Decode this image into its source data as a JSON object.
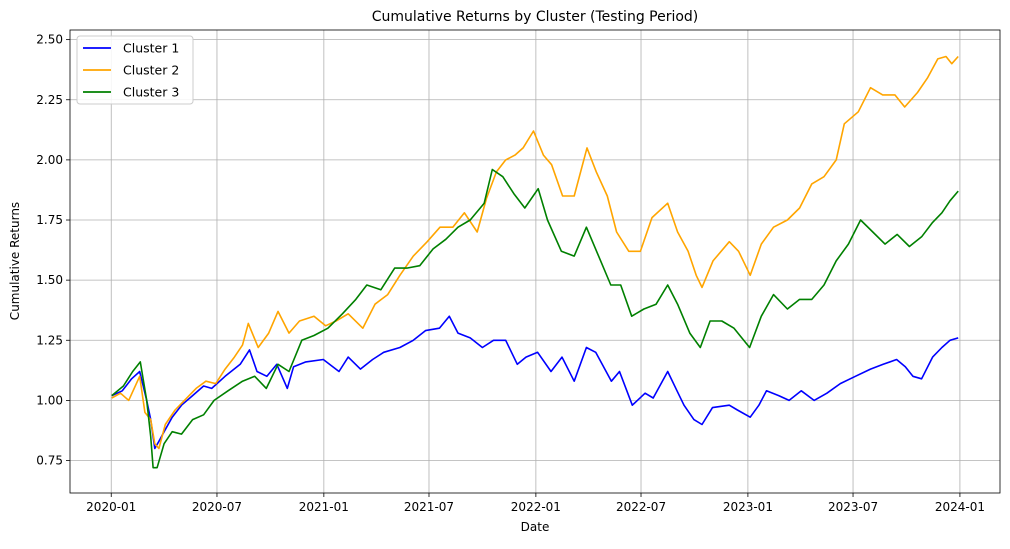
{
  "chart_data": {
    "type": "line",
    "title": "Cumulative Returns by Cluster (Testing Period)",
    "xlabel": "Date",
    "ylabel": "Cumulative Returns",
    "x_ticks": [
      "2020-01",
      "2020-07",
      "2021-01",
      "2021-07",
      "2022-01",
      "2022-07",
      "2023-01",
      "2023-07",
      "2024-01"
    ],
    "xlim": [
      "2019-10-22",
      "2024-03-10"
    ],
    "y_ticks": [
      "0.75",
      "1.00",
      "1.25",
      "1.50",
      "1.75",
      "2.00",
      "2.25",
      "2.50"
    ],
    "ylim": [
      0.615,
      2.54
    ],
    "grid": true,
    "legend_position": "top-left",
    "series": [
      {
        "name": "Cluster 1",
        "color": "#0000ff",
        "points": [
          [
            "2020-01-02",
            1.02
          ],
          [
            "2020-01-20",
            1.04
          ],
          [
            "2020-02-05",
            1.09
          ],
          [
            "2020-02-19",
            1.12
          ],
          [
            "2020-03-02",
            1.0
          ],
          [
            "2020-03-09",
            0.92
          ],
          [
            "2020-03-16",
            0.8
          ],
          [
            "2020-03-23",
            0.83
          ],
          [
            "2020-04-01",
            0.87
          ],
          [
            "2020-04-15",
            0.93
          ],
          [
            "2020-05-01",
            0.98
          ],
          [
            "2020-05-20",
            1.02
          ],
          [
            "2020-06-08",
            1.06
          ],
          [
            "2020-06-22",
            1.05
          ],
          [
            "2020-07-15",
            1.1
          ],
          [
            "2020-08-10",
            1.15
          ],
          [
            "2020-08-26",
            1.21
          ],
          [
            "2020-09-08",
            1.12
          ],
          [
            "2020-09-25",
            1.1
          ],
          [
            "2020-10-12",
            1.15
          ],
          [
            "2020-10-30",
            1.05
          ],
          [
            "2020-11-10",
            1.14
          ],
          [
            "2020-12-01",
            1.16
          ],
          [
            "2020-12-31",
            1.17
          ],
          [
            "2021-01-27",
            1.12
          ],
          [
            "2021-02-12",
            1.18
          ],
          [
            "2021-03-05",
            1.13
          ],
          [
            "2021-03-26",
            1.17
          ],
          [
            "2021-04-14",
            1.2
          ],
          [
            "2021-05-12",
            1.22
          ],
          [
            "2021-06-04",
            1.25
          ],
          [
            "2021-06-25",
            1.29
          ],
          [
            "2021-07-19",
            1.3
          ],
          [
            "2021-08-05",
            1.35
          ],
          [
            "2021-08-20",
            1.28
          ],
          [
            "2021-09-10",
            1.26
          ],
          [
            "2021-10-01",
            1.22
          ],
          [
            "2021-10-20",
            1.25
          ],
          [
            "2021-11-10",
            1.25
          ],
          [
            "2021-11-30",
            1.15
          ],
          [
            "2021-12-15",
            1.18
          ],
          [
            "2022-01-04",
            1.2
          ],
          [
            "2022-01-27",
            1.12
          ],
          [
            "2022-02-15",
            1.18
          ],
          [
            "2022-03-08",
            1.08
          ],
          [
            "2022-03-29",
            1.22
          ],
          [
            "2022-04-14",
            1.2
          ],
          [
            "2022-05-11",
            1.08
          ],
          [
            "2022-05-25",
            1.12
          ],
          [
            "2022-06-16",
            0.98
          ],
          [
            "2022-07-08",
            1.03
          ],
          [
            "2022-07-22",
            1.01
          ],
          [
            "2022-08-16",
            1.12
          ],
          [
            "2022-09-01",
            1.04
          ],
          [
            "2022-09-13",
            0.98
          ],
          [
            "2022-09-30",
            0.92
          ],
          [
            "2022-10-14",
            0.9
          ],
          [
            "2022-11-01",
            0.97
          ],
          [
            "2022-11-30",
            0.98
          ],
          [
            "2022-12-14",
            0.96
          ],
          [
            "2023-01-05",
            0.93
          ],
          [
            "2023-01-20",
            0.98
          ],
          [
            "2023-02-02",
            1.04
          ],
          [
            "2023-02-23",
            1.02
          ],
          [
            "2023-03-13",
            1.0
          ],
          [
            "2023-04-03",
            1.04
          ],
          [
            "2023-04-25",
            1.0
          ],
          [
            "2023-05-17",
            1.03
          ],
          [
            "2023-06-09",
            1.07
          ],
          [
            "2023-07-05",
            1.1
          ],
          [
            "2023-07-31",
            1.13
          ],
          [
            "2023-08-22",
            1.15
          ],
          [
            "2023-09-14",
            1.17
          ],
          [
            "2023-09-29",
            1.14
          ],
          [
            "2023-10-12",
            1.1
          ],
          [
            "2023-10-27",
            1.09
          ],
          [
            "2023-11-15",
            1.18
          ],
          [
            "2023-12-01",
            1.22
          ],
          [
            "2023-12-15",
            1.25
          ],
          [
            "2023-12-29",
            1.26
          ]
        ]
      },
      {
        "name": "Cluster 2",
        "color": "#ffa500",
        "points": [
          [
            "2020-01-02",
            1.01
          ],
          [
            "2020-01-17",
            1.03
          ],
          [
            "2020-01-31",
            1.0
          ],
          [
            "2020-02-19",
            1.1
          ],
          [
            "2020-02-28",
            0.95
          ],
          [
            "2020-03-09",
            0.92
          ],
          [
            "2020-03-16",
            0.82
          ],
          [
            "2020-03-23",
            0.8
          ],
          [
            "2020-04-03",
            0.9
          ],
          [
            "2020-04-20",
            0.96
          ],
          [
            "2020-05-06",
            1.0
          ],
          [
            "2020-05-26",
            1.05
          ],
          [
            "2020-06-12",
            1.08
          ],
          [
            "2020-06-29",
            1.07
          ],
          [
            "2020-07-15",
            1.13
          ],
          [
            "2020-07-31",
            1.18
          ],
          [
            "2020-08-14",
            1.23
          ],
          [
            "2020-08-24",
            1.32
          ],
          [
            "2020-09-10",
            1.22
          ],
          [
            "2020-09-28",
            1.28
          ],
          [
            "2020-10-14",
            1.37
          ],
          [
            "2020-11-02",
            1.28
          ],
          [
            "2020-11-20",
            1.33
          ],
          [
            "2020-12-15",
            1.35
          ],
          [
            "2021-01-04",
            1.31
          ],
          [
            "2021-01-22",
            1.33
          ],
          [
            "2021-02-12",
            1.36
          ],
          [
            "2021-03-09",
            1.3
          ],
          [
            "2021-03-30",
            1.4
          ],
          [
            "2021-04-21",
            1.44
          ],
          [
            "2021-05-12",
            1.52
          ],
          [
            "2021-06-04",
            1.6
          ],
          [
            "2021-06-28",
            1.66
          ],
          [
            "2021-07-20",
            1.72
          ],
          [
            "2021-08-11",
            1.72
          ],
          [
            "2021-08-31",
            1.78
          ],
          [
            "2021-09-22",
            1.7
          ],
          [
            "2021-10-08",
            1.84
          ],
          [
            "2021-10-25",
            1.95
          ],
          [
            "2021-11-10",
            2.0
          ],
          [
            "2021-11-26",
            2.02
          ],
          [
            "2021-12-10",
            2.05
          ],
          [
            "2021-12-28",
            2.12
          ],
          [
            "2022-01-14",
            2.02
          ],
          [
            "2022-01-28",
            1.98
          ],
          [
            "2022-02-16",
            1.85
          ],
          [
            "2022-03-08",
            1.85
          ],
          [
            "2022-03-30",
            2.05
          ],
          [
            "2022-04-15",
            1.95
          ],
          [
            "2022-05-04",
            1.85
          ],
          [
            "2022-05-20",
            1.7
          ],
          [
            "2022-06-10",
            1.62
          ],
          [
            "2022-06-30",
            1.62
          ],
          [
            "2022-07-20",
            1.76
          ],
          [
            "2022-08-16",
            1.82
          ],
          [
            "2022-09-02",
            1.7
          ],
          [
            "2022-09-20",
            1.62
          ],
          [
            "2022-10-04",
            1.52
          ],
          [
            "2022-10-14",
            1.47
          ],
          [
            "2022-11-02",
            1.58
          ],
          [
            "2022-11-30",
            1.66
          ],
          [
            "2022-12-16",
            1.62
          ],
          [
            "2023-01-05",
            1.52
          ],
          [
            "2023-01-24",
            1.65
          ],
          [
            "2023-02-14",
            1.72
          ],
          [
            "2023-03-10",
            1.75
          ],
          [
            "2023-03-31",
            1.8
          ],
          [
            "2023-04-21",
            1.9
          ],
          [
            "2023-05-12",
            1.93
          ],
          [
            "2023-06-02",
            2.0
          ],
          [
            "2023-06-16",
            2.15
          ],
          [
            "2023-07-10",
            2.2
          ],
          [
            "2023-07-31",
            2.3
          ],
          [
            "2023-08-21",
            2.27
          ],
          [
            "2023-09-11",
            2.27
          ],
          [
            "2023-09-28",
            2.22
          ],
          [
            "2023-10-20",
            2.28
          ],
          [
            "2023-11-06",
            2.34
          ],
          [
            "2023-11-24",
            2.42
          ],
          [
            "2023-12-08",
            2.43
          ],
          [
            "2023-12-18",
            2.4
          ],
          [
            "2023-12-29",
            2.43
          ]
        ]
      },
      {
        "name": "Cluster 3",
        "color": "#008000",
        "points": [
          [
            "2020-01-02",
            1.02
          ],
          [
            "2020-01-22",
            1.06
          ],
          [
            "2020-02-07",
            1.12
          ],
          [
            "2020-02-20",
            1.16
          ],
          [
            "2020-03-02",
            1.0
          ],
          [
            "2020-03-09",
            0.85
          ],
          [
            "2020-03-13",
            0.72
          ],
          [
            "2020-03-20",
            0.72
          ],
          [
            "2020-04-01",
            0.82
          ],
          [
            "2020-04-15",
            0.87
          ],
          [
            "2020-05-01",
            0.86
          ],
          [
            "2020-05-20",
            0.92
          ],
          [
            "2020-06-08",
            0.94
          ],
          [
            "2020-06-26",
            1.0
          ],
          [
            "2020-07-20",
            1.04
          ],
          [
            "2020-08-14",
            1.08
          ],
          [
            "2020-09-04",
            1.1
          ],
          [
            "2020-09-24",
            1.05
          ],
          [
            "2020-10-14",
            1.15
          ],
          [
            "2020-11-02",
            1.12
          ],
          [
            "2020-11-24",
            1.25
          ],
          [
            "2020-12-15",
            1.27
          ],
          [
            "2021-01-08",
            1.3
          ],
          [
            "2021-02-02",
            1.36
          ],
          [
            "2021-02-25",
            1.42
          ],
          [
            "2021-03-16",
            1.48
          ],
          [
            "2021-04-09",
            1.46
          ],
          [
            "2021-05-03",
            1.55
          ],
          [
            "2021-05-24",
            1.55
          ],
          [
            "2021-06-15",
            1.56
          ],
          [
            "2021-07-08",
            1.63
          ],
          [
            "2021-07-30",
            1.67
          ],
          [
            "2021-08-20",
            1.72
          ],
          [
            "2021-09-10",
            1.75
          ],
          [
            "2021-10-04",
            1.82
          ],
          [
            "2021-10-18",
            1.96
          ],
          [
            "2021-11-05",
            1.93
          ],
          [
            "2021-11-24",
            1.86
          ],
          [
            "2021-12-13",
            1.8
          ],
          [
            "2022-01-05",
            1.88
          ],
          [
            "2022-01-21",
            1.75
          ],
          [
            "2022-02-14",
            1.62
          ],
          [
            "2022-03-08",
            1.6
          ],
          [
            "2022-03-29",
            1.72
          ],
          [
            "2022-04-19",
            1.6
          ],
          [
            "2022-05-10",
            1.48
          ],
          [
            "2022-05-27",
            1.48
          ],
          [
            "2022-06-15",
            1.35
          ],
          [
            "2022-07-06",
            1.38
          ],
          [
            "2022-07-27",
            1.4
          ],
          [
            "2022-08-16",
            1.48
          ],
          [
            "2022-09-02",
            1.4
          ],
          [
            "2022-09-23",
            1.28
          ],
          [
            "2022-10-11",
            1.22
          ],
          [
            "2022-10-28",
            1.33
          ],
          [
            "2022-11-17",
            1.33
          ],
          [
            "2022-12-08",
            1.3
          ],
          [
            "2023-01-04",
            1.22
          ],
          [
            "2023-01-24",
            1.35
          ],
          [
            "2023-02-14",
            1.44
          ],
          [
            "2023-03-10",
            1.38
          ],
          [
            "2023-03-31",
            1.42
          ],
          [
            "2023-04-21",
            1.42
          ],
          [
            "2023-05-12",
            1.48
          ],
          [
            "2023-06-02",
            1.58
          ],
          [
            "2023-06-23",
            1.65
          ],
          [
            "2023-07-14",
            1.75
          ],
          [
            "2023-08-04",
            1.7
          ],
          [
            "2023-08-25",
            1.65
          ],
          [
            "2023-09-15",
            1.69
          ],
          [
            "2023-10-06",
            1.64
          ],
          [
            "2023-10-27",
            1.68
          ],
          [
            "2023-11-15",
            1.74
          ],
          [
            "2023-12-01",
            1.78
          ],
          [
            "2023-12-15",
            1.83
          ],
          [
            "2023-12-29",
            1.87
          ]
        ]
      }
    ]
  }
}
